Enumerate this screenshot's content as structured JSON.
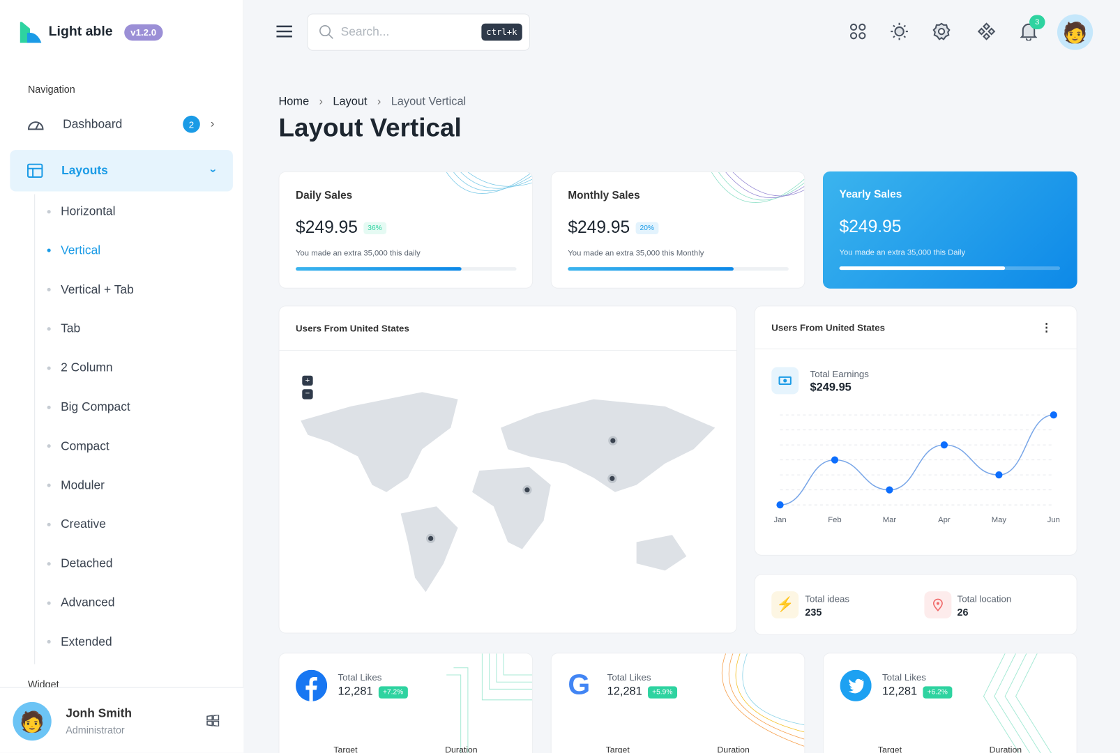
{
  "app": {
    "name": "Light able",
    "version": "v1.2.0"
  },
  "sidebar": {
    "caption": "Navigation",
    "dashboard": {
      "label": "Dashboard",
      "badge": "2"
    },
    "layouts": {
      "label": "Layouts"
    },
    "sub_items": [
      {
        "label": "Horizontal"
      },
      {
        "label": "Vertical",
        "active": true
      },
      {
        "label": "Vertical + Tab"
      },
      {
        "label": "Tab"
      },
      {
        "label": "2 Column"
      },
      {
        "label": "Big Compact"
      },
      {
        "label": "Compact"
      },
      {
        "label": "Moduler"
      },
      {
        "label": "Creative"
      },
      {
        "label": "Detached"
      },
      {
        "label": "Advanced"
      },
      {
        "label": "Extended"
      }
    ],
    "widget_caption": "Widget",
    "user": {
      "name": "Jonh Smith",
      "role": "Administrator"
    }
  },
  "header": {
    "search_placeholder": "Search...",
    "shortcut": "ctrl+k",
    "notifications": "3"
  },
  "breadcrumb": [
    "Home",
    "Layout",
    "Layout Vertical"
  ],
  "page_title": "Layout Vertical",
  "stats": [
    {
      "title": "Daily Sales",
      "amount": "$249.95",
      "percent": "36%",
      "note": "You made an extra 35,000 this daily",
      "progress": 75
    },
    {
      "title": "Monthly Sales",
      "amount": "$249.95",
      "percent": "20%",
      "note": "You made an extra 35,000 this Monthly",
      "progress": 75
    },
    {
      "title": "Yearly Sales",
      "amount": "$249.95",
      "note": "You made an extra 35,000 this Daily",
      "progress": 75
    }
  ],
  "map_panel": {
    "title": "Users From United States"
  },
  "earnings_panel": {
    "title": "Users From United States",
    "label": "Total Earnings",
    "amount": "$249.95"
  },
  "chart_data": {
    "type": "line",
    "categories": [
      "Jan",
      "Feb",
      "Mar",
      "Apr",
      "May",
      "Jun"
    ],
    "values": [
      10,
      40,
      20,
      50,
      30,
      70
    ],
    "ylim": [
      10,
      70
    ],
    "grid": true,
    "color": "#0d6efd"
  },
  "mini": [
    {
      "label": "Total ideas",
      "value": "235"
    },
    {
      "label": "Total location",
      "value": "26"
    }
  ],
  "social": [
    {
      "label": "Total Likes",
      "value": "12,281",
      "change": "+7.2%",
      "target": "Target",
      "duration": "Duration"
    },
    {
      "label": "Total Likes",
      "value": "12,281",
      "change": "+5.9%",
      "target": "Target",
      "duration": "Duration"
    },
    {
      "label": "Total Likes",
      "value": "12,281",
      "change": "+6.2%",
      "target": "Target",
      "duration": "Duration"
    }
  ]
}
